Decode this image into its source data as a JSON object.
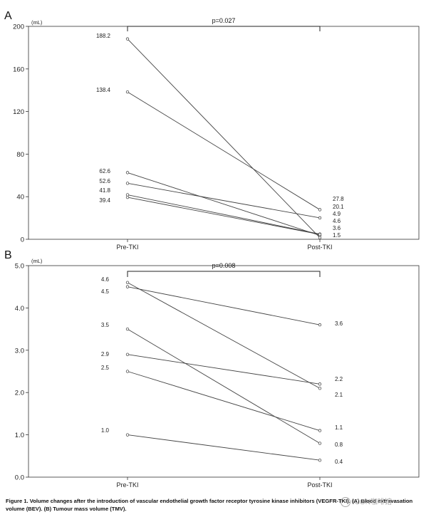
{
  "chart_data": [
    {
      "type": "line",
      "panel_label": "A",
      "unit_label": "(mL)",
      "categories": [
        "Pre-TKI",
        "Post-TKI"
      ],
      "ylim": [
        0,
        200
      ],
      "yticks": [
        "0",
        "40",
        "80",
        "120",
        "160",
        "200"
      ],
      "significance": "p=0.027",
      "series": [
        {
          "values": [
            188.2,
            1.5
          ]
        },
        {
          "values": [
            138.4,
            27.8
          ]
        },
        {
          "values": [
            62.6,
            3.6
          ]
        },
        {
          "values": [
            52.6,
            20.1
          ]
        },
        {
          "values": [
            41.8,
            4.9
          ]
        },
        {
          "values": [
            39.4,
            4.6
          ]
        }
      ],
      "pre_labels": [
        "188.2",
        "138.4",
        "62.6",
        "52.6",
        "41.8",
        "39.4"
      ],
      "post_labels": [
        "27.8",
        "20.1",
        "4.9",
        "4.6",
        "3.6",
        "1.5"
      ]
    },
    {
      "type": "line",
      "panel_label": "B",
      "unit_label": "(mL)",
      "categories": [
        "Pre-TKI",
        "Post-TKI"
      ],
      "ylim": [
        0,
        5
      ],
      "yticks": [
        "0.0",
        "1.0",
        "2.0",
        "3.0",
        "4.0",
        "5.0"
      ],
      "significance": "p=0.008",
      "series": [
        {
          "values": [
            4.6,
            2.1
          ]
        },
        {
          "values": [
            4.5,
            3.6
          ]
        },
        {
          "values": [
            3.5,
            0.8
          ]
        },
        {
          "values": [
            2.9,
            2.2
          ]
        },
        {
          "values": [
            2.5,
            1.1
          ]
        },
        {
          "values": [
            1.0,
            0.4
          ]
        }
      ],
      "pre_labels": [
        "4.6",
        "4.5",
        "3.5",
        "2.9",
        "2.5",
        "1.0"
      ],
      "post_labels": [
        "3.6",
        "2.2",
        "2.1",
        "1.1",
        "0.8",
        "0.4"
      ]
    }
  ],
  "caption": {
    "bold_text": "Figure 1. Volume changes after the introduction of vascular endothelial growth factor receptor tyrosine kinase inhibitors (VEGFR-TKI). (A) Blood extravasation volume (BEV). (B) Tumour mass volume (TMV)."
  },
  "watermark": {
    "text": "ICON咖啡馆"
  }
}
